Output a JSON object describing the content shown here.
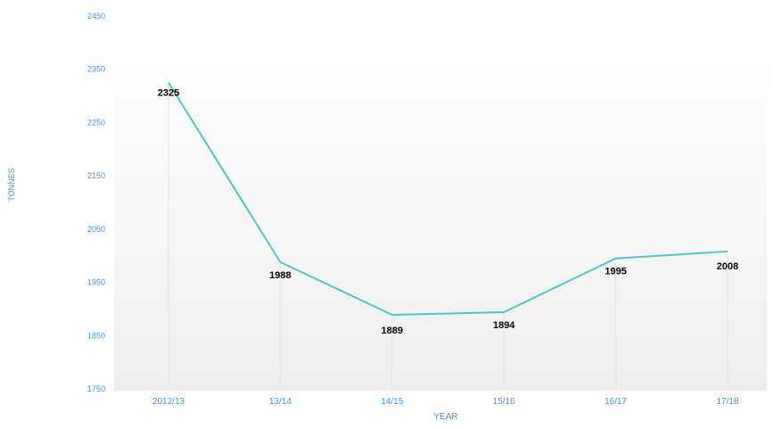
{
  "chart_data": {
    "type": "line",
    "categories": [
      "2012/13",
      "13/14",
      "14/15",
      "15/16",
      "16/17",
      "17/18"
    ],
    "series": [
      {
        "values": [
          2325,
          1988,
          1889,
          1894,
          1995,
          2008
        ]
      }
    ],
    "data_labels": [
      "2325",
      "1988",
      "1889",
      "1894",
      "1995",
      "2008"
    ],
    "xlabel": "YEAR",
    "ylabel": "TONNES",
    "ylim": [
      1750,
      2450
    ],
    "yticks": [
      "2450",
      "2350",
      "2250",
      "2150",
      "2050",
      "1950",
      "1850",
      "1750"
    ],
    "colors": {
      "line": "#4fc7c2",
      "axis_text": "#4a90d9",
      "drop_lines": "#e2e2e2",
      "plot_bg_top": "#ffffff",
      "plot_bg_bottom": "#eeeeee",
      "label_text": "#000000"
    }
  }
}
